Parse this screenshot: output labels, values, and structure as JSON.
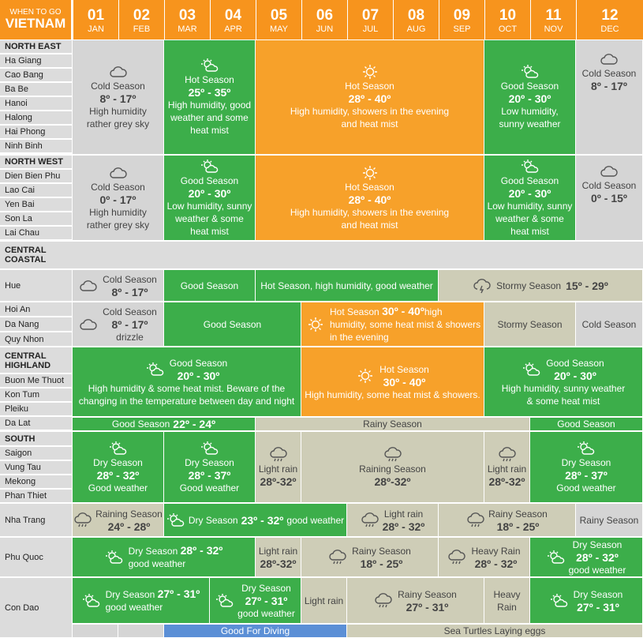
{
  "brand": {
    "line1": "WHEN TO GO",
    "line2": "VIETNAM"
  },
  "months": [
    {
      "num": "01",
      "name": "JAN"
    },
    {
      "num": "02",
      "name": "FEB"
    },
    {
      "num": "03",
      "name": "MAR"
    },
    {
      "num": "04",
      "name": "APR"
    },
    {
      "num": "05",
      "name": "MAY"
    },
    {
      "num": "06",
      "name": "JUN"
    },
    {
      "num": "07",
      "name": "JUL"
    },
    {
      "num": "08",
      "name": "AUG"
    },
    {
      "num": "09",
      "name": "SEP"
    },
    {
      "num": "10",
      "name": "OCT"
    },
    {
      "num": "11",
      "name": "NOV"
    },
    {
      "num": "12",
      "name": "DEC"
    }
  ],
  "regions": {
    "north_east": {
      "title": "NORTH EAST",
      "places": [
        "Ha Giang",
        "Cao Bang",
        "Ba Be",
        "Hanoi",
        "Halong",
        "Hai Phong",
        "Ninh Binh"
      ]
    },
    "north_west": {
      "title": "NORTH WEST",
      "places": [
        "Dien Bien Phu",
        "Lao Cai",
        "Yen Bai",
        "Son La",
        "Lai Chau"
      ]
    },
    "central_coastal": {
      "title": "CENTRAL COASTAL",
      "hue": "Hue",
      "places": [
        "Hoi An",
        "Da Nang",
        "Quy Nhon"
      ]
    },
    "central_highland": {
      "title": "CENTRAL HIGHLAND",
      "places": [
        "Buon Me Thuot",
        "Kon Tum",
        "Pleiku",
        "Da Lat"
      ]
    },
    "south": {
      "title": "SOUTH",
      "places": [
        "Saigon",
        "Vung Tau",
        "Mekong",
        "Phan Thiet"
      ],
      "nha_trang": "Nha Trang",
      "phu_quoc": "Phu Quoc",
      "con_dao": "Con Dao"
    }
  },
  "ne": {
    "cold": {
      "t": "Cold Season",
      "r": "8º - 17º",
      "d1": "High humidity",
      "d2": "rather grey sky"
    },
    "hot1": {
      "t": "Hot Season",
      "r": "25º - 35º",
      "d1": "High humidity, good",
      "d2": "weather and some",
      "d3": "heat mist"
    },
    "hot2": {
      "t": "Hot Season",
      "r": "28º - 40º",
      "d1": "High humidity, showers in the evening",
      "d2": "and heat mist"
    },
    "good": {
      "t": "Good Season",
      "r": "20º - 30º",
      "d1": "Low humidity,",
      "d2": "sunny weather"
    },
    "cold2": {
      "t": "Cold Season",
      "r": "8º - 17º"
    }
  },
  "nw": {
    "cold": {
      "t": "Cold Season",
      "r": "0º - 17º",
      "d1": "High humidity",
      "d2": "rather grey sky"
    },
    "good1": {
      "t": "Good Season",
      "r": "20º - 30º",
      "d1": "Low humidity, sunny",
      "d2": "weather & some",
      "d3": "heat mist"
    },
    "hot": {
      "t": "Hot Season",
      "r": "28º - 40º",
      "d1": "High humidity, showers in the evening",
      "d2": "and heat mist"
    },
    "good2": {
      "t": "Good Season",
      "r": "20º - 30º",
      "d1": "Low humidity, sunny",
      "d2": "weather & some",
      "d3": "heat mist"
    },
    "cold2": {
      "t": "Cold Season",
      "r": "0º - 15º"
    }
  },
  "hue": {
    "cold": {
      "t": "Cold Season",
      "r": "8º - 17º"
    },
    "good": "Good Season",
    "hot": "Hot Season, high humidity, good weather",
    "stormy": {
      "t": "Stormy Season",
      "r": "15º - 29º"
    }
  },
  "hoian": {
    "cold": {
      "t": "Cold Season",
      "r": "8º - 17º",
      "d": "drizzle"
    },
    "good": "Good Season",
    "hot": {
      "t": "Hot Season",
      "r": "30º - 40º",
      "d1": "high",
      "d2": "humidity, some heat mist & showers",
      "d3": "in the evening"
    },
    "stormy": "Stormy Season",
    "cold2": "Cold Season"
  },
  "highland": {
    "good1": {
      "t": "Good Season",
      "r": "20º - 30º",
      "d1": "High humidity & some heat mist. Beware of the",
      "d2": "changing in the temperature between day and night"
    },
    "hot": {
      "t": "Hot Season",
      "r": "30º - 40º",
      "d1": "High humidity, some heat mist & showers."
    },
    "good2": {
      "t": "Good Season",
      "r": "20º - 30º",
      "d1": "High humidity, sunny weather",
      "d2": "& some heat mist"
    },
    "dalat_good": {
      "t": "Good Season",
      "r": "22º - 24º"
    },
    "dalat_rainy": "Rainy Season",
    "dalat_good2": "Good Season"
  },
  "south_main": {
    "dry1": {
      "t": "Dry Season",
      "r": "28º - 32º",
      "d": "Good weather"
    },
    "dry2": {
      "t": "Dry Season",
      "r": "28º - 37º",
      "d": "Good weather"
    },
    "light1": {
      "t": "Light rain",
      "r": "28º-32º"
    },
    "raining": {
      "t": "Raining Season",
      "r": "28º-32º"
    },
    "light2": {
      "t": "Light rain",
      "r": "28º-32º"
    },
    "dry3": {
      "t": "Dry Season",
      "r": "28º - 37º",
      "d": "Good weather"
    }
  },
  "nhatrang": {
    "raining": {
      "t": "Raining Season",
      "r": "24º - 28º"
    },
    "dry": {
      "t": "Dry Season",
      "r": "23º - 32º",
      "d": "good weather"
    },
    "light": {
      "t": "Light rain",
      "r": "28º - 32º"
    },
    "rainy": {
      "t": "Rainy Season",
      "r": "18º - 25º"
    },
    "rainy2": "Rainy Season"
  },
  "phuquoc": {
    "dry": {
      "t": "Dry Season",
      "r": "28º - 32º",
      "d": "good weather"
    },
    "light": {
      "t": "Light rain",
      "r": "28º-32º"
    },
    "rainy": {
      "t": "Rainy Season",
      "r": "18º - 25º"
    },
    "heavy": {
      "t": "Heavy Rain",
      "r": "28º - 32º"
    },
    "dry2": {
      "t": "Dry Season",
      "r": "28º - 32º",
      "d": "good weather"
    }
  },
  "condao": {
    "dry1": {
      "t": "Dry Season",
      "r": "27º - 31º",
      "d": "good weather"
    },
    "dry2": {
      "t": "Dry Season",
      "r": "27º - 31º",
      "d": "good weather"
    },
    "light": "Light rain",
    "rainy": {
      "t": "Rainy Season",
      "r": "27º - 31º"
    },
    "heavy": {
      "t": "Heavy",
      "t2": "Rain"
    },
    "dry3": {
      "t": "Dry Season",
      "r": "27º - 31º"
    }
  },
  "footer": {
    "diving": "Good For Diving",
    "turtles": "Sea Turtles Laying eggs"
  },
  "colors": {
    "orange": "#f7941d",
    "green": "#3cae4a",
    "grey": "#d5d5d5",
    "khaki": "#cecdb7",
    "blue": "#5b8fd6"
  }
}
